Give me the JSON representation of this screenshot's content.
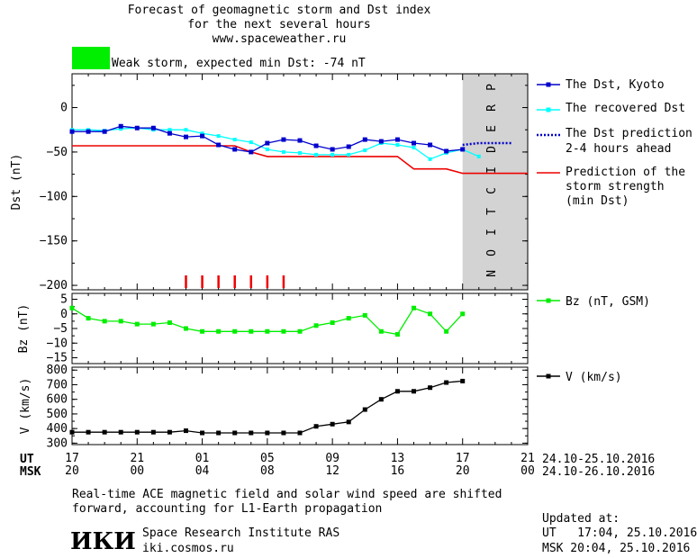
{
  "header": {
    "title_line1": "Forecast of geomagnetic storm and Dst index",
    "title_line2": "for the next several hours",
    "title_line3": "www.spaceweather.ru",
    "storm_color": "#00ee00",
    "storm_label": "Weak storm, expected min Dst: -74 nT"
  },
  "colors": {
    "kyoto": "#0000cc",
    "recovered": "#00ffff",
    "prediction_dotted": "#0000cc",
    "strength": "#ee0000",
    "bz": "#00ee00",
    "speed": "#000000",
    "shade": "#d3d3d3"
  },
  "legend": {
    "kyoto": "The Dst, Kyoto",
    "recovered": "The recovered Dst",
    "prediction_l1": "The Dst prediction",
    "prediction_l2": "2-4 hours ahead",
    "strength_l1": "Prediction of the",
    "strength_l2": "storm strength",
    "strength_l3": "(min Dst)",
    "bz": "Bz (nT, GSM)",
    "speed": "V (km/s)"
  },
  "prediction_text": "PREDICTION",
  "axes": {
    "dst_label": "Dst (nT)",
    "bz_label": "Bz (nT)",
    "v_label": "V (km/s)",
    "dst_ticks": [
      0,
      -50,
      -100,
      -150,
      -200
    ],
    "bz_ticks": [
      5,
      0,
      -5,
      -10,
      -15
    ],
    "v_ticks": [
      800,
      700,
      600,
      500,
      400,
      300
    ],
    "ut_label": "UT",
    "msk_label": "MSK",
    "ut_ticks": [
      "17",
      "21",
      "01",
      "05",
      "09",
      "13",
      "17",
      "21"
    ],
    "msk_ticks": [
      "20",
      "00",
      "04",
      "08",
      "12",
      "16",
      "20",
      "00"
    ],
    "ut_date": "24.10-25.10.2016",
    "msk_date": "24.10-26.10.2016"
  },
  "chart_data": {
    "type": "line",
    "x_unit": "hours since 17 UT 24.10.2016",
    "xlim": [
      0,
      28
    ],
    "prediction_start": 24,
    "dst": {
      "ylim": [
        -205,
        38
      ],
      "kyoto": {
        "x": [
          0,
          1,
          2,
          3,
          4,
          5,
          6,
          7,
          8,
          9,
          10,
          11,
          12,
          13,
          14,
          15,
          16,
          17,
          18,
          19,
          20,
          21,
          22,
          23,
          24
        ],
        "values": [
          -27,
          -27,
          -27,
          -21,
          -23,
          -23,
          -29,
          -33,
          -32,
          -42,
          -47,
          -50,
          -40,
          -36,
          -37,
          -43,
          -47,
          -44,
          -36,
          -38,
          -36,
          -40,
          -42,
          -49,
          -47
        ]
      },
      "recovered": {
        "x": [
          0,
          1,
          2,
          3,
          4,
          5,
          6,
          7,
          8,
          9,
          10,
          11,
          12,
          13,
          14,
          15,
          16,
          17,
          18,
          19,
          20,
          21,
          22,
          23,
          24,
          25
        ],
        "values": [
          -25,
          -25,
          -26,
          -24,
          -23,
          -25,
          -25,
          -25,
          -29,
          -32,
          -36,
          -39,
          -47,
          -50,
          -51,
          -53,
          -53,
          -53,
          -48,
          -40,
          -42,
          -45,
          -58,
          -51,
          -47,
          -55
        ]
      },
      "prediction": {
        "x": [
          24,
          25,
          26,
          27
        ],
        "values": [
          -42,
          -40,
          -40,
          -40
        ]
      },
      "storm_strength": {
        "x": [
          0,
          10,
          11,
          12,
          20,
          21,
          23,
          24,
          28
        ],
        "values": [
          -43,
          -43,
          -50,
          -55,
          -55,
          -69,
          -69,
          -74,
          -74
        ]
      },
      "storm_markers_x": [
        7,
        8,
        9,
        10,
        11,
        12,
        13
      ]
    },
    "bz": {
      "ylim": [
        -17,
        7
      ],
      "x": [
        0,
        1,
        2,
        3,
        4,
        5,
        6,
        7,
        8,
        9,
        10,
        11,
        12,
        13,
        14,
        15,
        16,
        17,
        18,
        19,
        20,
        21,
        22,
        23,
        24,
        25
      ],
      "values": [
        2,
        -1.5,
        -2.5,
        -2.5,
        -3.5,
        -3.5,
        -3,
        -5,
        -6,
        -6,
        -6,
        -6,
        -6,
        -6,
        -6,
        -4,
        -3,
        -1.5,
        -0.5,
        -6,
        -7,
        2,
        0,
        -6,
        0,
        null
      ]
    },
    "speed": {
      "ylim": [
        290,
        820
      ],
      "x": [
        0,
        1,
        2,
        3,
        4,
        5,
        6,
        7,
        8,
        9,
        10,
        11,
        12,
        13,
        14,
        15,
        16,
        17,
        18,
        19,
        20,
        21,
        22,
        23,
        24,
        25
      ],
      "values": [
        375,
        375,
        375,
        375,
        375,
        375,
        375,
        385,
        370,
        370,
        370,
        370,
        370,
        370,
        370,
        415,
        430,
        445,
        530,
        600,
        655,
        655,
        680,
        715,
        725,
        null
      ]
    }
  },
  "footer": {
    "note_l1": "Real-time ACE magnetic field and solar wind speed are shifted",
    "note_l2": "forward, accounting for L1-Earth propagation",
    "logo": "ИКИ",
    "org": "Space Research Institute RAS",
    "site": "iki.cosmos.ru",
    "updated_label": "Updated at:",
    "updated_ut": "UT   17:04, 25.10.2016",
    "updated_msk": "MSK 20:04, 25.10.2016"
  }
}
